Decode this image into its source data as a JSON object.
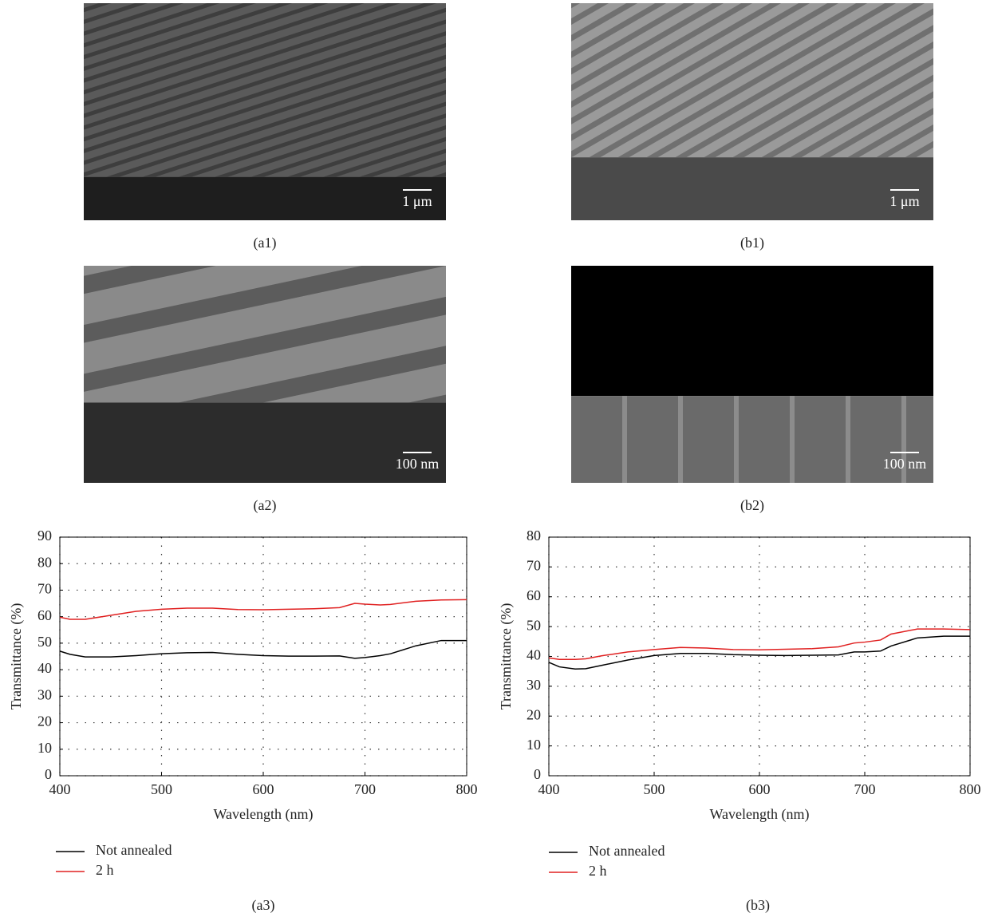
{
  "figure": {
    "images": [
      {
        "caption": "(a1)",
        "scale_label": "1 μm"
      },
      {
        "caption": "(b1)",
        "scale_label": "1 μm"
      },
      {
        "caption": "(a2)",
        "scale_label": "100 nm"
      },
      {
        "caption": "(b2)",
        "scale_label": "100 nm"
      }
    ]
  },
  "chart_data": [
    {
      "type": "line",
      "caption": "(a3)",
      "x_label": "Wavelength (nm)",
      "y_label": "Transmittance (%)",
      "x": [
        400,
        410,
        425,
        450,
        475,
        500,
        525,
        550,
        575,
        600,
        625,
        650,
        675,
        690,
        700,
        715,
        725,
        750,
        775,
        800
      ],
      "series": [
        {
          "name": "Not annealed",
          "color": "#000000",
          "values": [
            47,
            45.8,
            44.8,
            44.8,
            45.3,
            46,
            46.4,
            46.5,
            45.8,
            45.3,
            45.1,
            45.1,
            45.2,
            44.3,
            44.6,
            45.3,
            46,
            49,
            51,
            51
          ]
        },
        {
          "name": "2 h",
          "color": "#e02020",
          "values": [
            59.8,
            59,
            59,
            60.5,
            62,
            62.8,
            63.2,
            63.2,
            62.7,
            62.6,
            62.8,
            63,
            63.4,
            65,
            64.7,
            64.4,
            64.6,
            65.8,
            66.3,
            66.4
          ]
        }
      ],
      "xlim": [
        400,
        800
      ],
      "xticks": [
        400,
        500,
        600,
        700,
        800
      ],
      "ylim": [
        0,
        90
      ],
      "yticks": [
        0,
        10,
        20,
        30,
        40,
        50,
        60,
        70,
        80,
        90
      ],
      "grid": true
    },
    {
      "type": "line",
      "caption": "(b3)",
      "x_label": "Wavelength (nm)",
      "y_label": "Transmittance (%)",
      "x": [
        400,
        410,
        425,
        435,
        450,
        475,
        500,
        525,
        550,
        575,
        600,
        625,
        650,
        675,
        690,
        700,
        715,
        725,
        750,
        775,
        800
      ],
      "series": [
        {
          "name": "Not annealed",
          "color": "#000000",
          "values": [
            38,
            36.5,
            35.8,
            35.9,
            37,
            38.8,
            40.3,
            41,
            41,
            40.6,
            40.4,
            40.3,
            40.4,
            40.5,
            41.5,
            41.5,
            41.8,
            43.5,
            46.2,
            46.8,
            46.8
          ]
        },
        {
          "name": "2 h",
          "color": "#e02020",
          "values": [
            39.5,
            39,
            39,
            39.2,
            40.2,
            41.5,
            42.3,
            43,
            42.8,
            42.3,
            42.2,
            42.4,
            42.6,
            43.2,
            44.5,
            44.8,
            45.5,
            47.5,
            49.2,
            49.2,
            49
          ]
        }
      ],
      "xlim": [
        400,
        800
      ],
      "xticks": [
        400,
        500,
        600,
        700,
        800
      ],
      "ylim": [
        0,
        80
      ],
      "yticks": [
        0,
        10,
        20,
        30,
        40,
        50,
        60,
        70,
        80
      ],
      "grid": true
    }
  ]
}
